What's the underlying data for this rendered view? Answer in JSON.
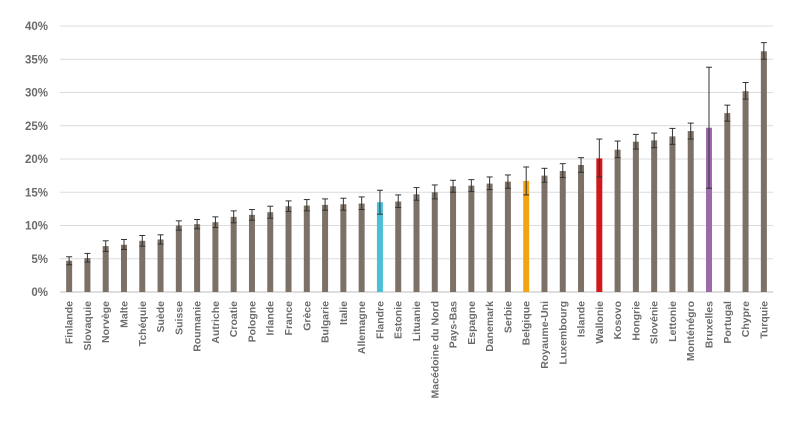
{
  "chart_data": {
    "type": "bar",
    "title": "",
    "xlabel": "",
    "ylabel": "",
    "ylim": [
      0,
      40
    ],
    "yticks": [
      "0%",
      "5%",
      "10%",
      "15%",
      "20%",
      "25%",
      "30%",
      "35%",
      "40%"
    ],
    "grid": true,
    "categories": [
      "Finlande",
      "Slovaquie",
      "Norvège",
      "Malte",
      "Tchéquie",
      "Suède",
      "Suisse",
      "Roumanie",
      "Autriche",
      "Croatie",
      "Pologne",
      "Irlande",
      "France",
      "Grèce",
      "Bulgarie",
      "Italie",
      "Allemagne",
      "Flandre",
      "Estonie",
      "Lituanie",
      "Macédoine du Nord",
      "Pays-Bas",
      "Espagne",
      "Danemark",
      "Serbie",
      "Belgique",
      "Royaume-Uni",
      "Luxembourg",
      "Islande",
      "Wallonie",
      "Kosovo",
      "Hongrie",
      "Slovénie",
      "Lettonie",
      "Monténégro",
      "Bruxelles",
      "Portugal",
      "Chypre",
      "Turquie"
    ],
    "values": [
      4.7,
      5.1,
      6.9,
      7.1,
      7.7,
      7.9,
      10.0,
      10.2,
      10.5,
      11.3,
      11.6,
      12.0,
      12.9,
      13.0,
      13.1,
      13.2,
      13.3,
      13.5,
      13.6,
      14.7,
      15.0,
      15.9,
      16.0,
      16.3,
      16.6,
      16.7,
      17.5,
      18.2,
      19.1,
      20.1,
      21.4,
      22.6,
      22.8,
      23.4,
      24.2,
      24.7,
      26.9,
      30.2,
      36.2
    ],
    "error_low": [
      4.1,
      4.5,
      6.1,
      6.4,
      6.9,
      7.2,
      9.3,
      9.5,
      9.7,
      10.4,
      10.8,
      11.1,
      12.1,
      12.2,
      12.3,
      12.3,
      12.4,
      11.7,
      12.7,
      13.8,
      14.0,
      15.0,
      15.1,
      15.4,
      15.6,
      14.6,
      16.5,
      17.2,
      18.0,
      17.3,
      20.2,
      21.5,
      21.7,
      22.2,
      23.0,
      15.6,
      25.7,
      29.0,
      35.0
    ],
    "error_high": [
      5.3,
      5.8,
      7.7,
      7.9,
      8.5,
      8.6,
      10.7,
      10.9,
      11.3,
      12.2,
      12.4,
      12.9,
      13.7,
      13.9,
      14.0,
      14.1,
      14.3,
      15.3,
      14.6,
      15.7,
      16.1,
      16.8,
      16.9,
      17.3,
      17.6,
      18.8,
      18.6,
      19.3,
      20.2,
      23.0,
      22.7,
      23.7,
      23.9,
      24.6,
      25.4,
      33.8,
      28.1,
      31.5,
      37.5
    ],
    "colors": {
      "default": "#7c7166",
      "highlight": {
        "Flandre": "#4bbfd6",
        "Belgique": "#f4a311",
        "Wallonie": "#d0191c",
        "Bruxelles": "#9b6aa9"
      }
    }
  }
}
